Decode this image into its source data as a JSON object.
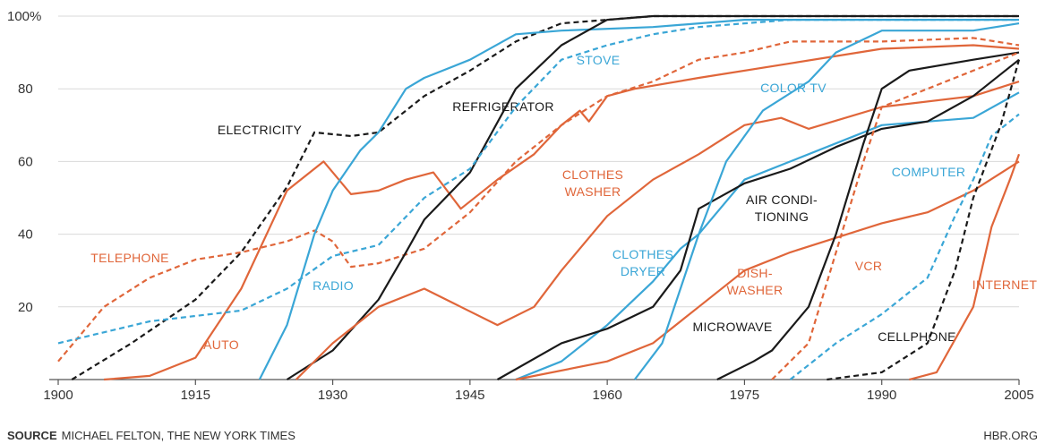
{
  "chart_data": {
    "type": "line",
    "source_label": "SOURCE",
    "source": "MICHAEL FELTON, THE NEW YORK TIMES",
    "credit": "HBR.ORG",
    "xlim": [
      1900,
      2005
    ],
    "xticks": [
      1900,
      1915,
      1930,
      1945,
      1960,
      1975,
      1990,
      2005
    ],
    "ylim": [
      0,
      100
    ],
    "yticks": [
      {
        "value": 100,
        "label": "100%"
      },
      80,
      60,
      40,
      20
    ],
    "grid": true,
    "series": [
      {
        "name": "ELECTRICITY",
        "color": "#1a1a1a",
        "dashed": true,
        "x": [
          1901.5,
          1908,
          1915,
          1920,
          1925,
          1928,
          1932,
          1935,
          1940,
          1945,
          1950,
          1955,
          1960,
          1965,
          2005
        ],
        "values": [
          0,
          10,
          22,
          35,
          53,
          68,
          67,
          68,
          78,
          85,
          93,
          98,
          99,
          100,
          100
        ]
      },
      {
        "name": "TELEPHONE",
        "color": "#e0663a",
        "dashed": true,
        "x": [
          1900,
          1905,
          1910,
          1915,
          1920,
          1925,
          1928,
          1930,
          1932,
          1935,
          1940,
          1945,
          1950,
          1955,
          1960,
          1965,
          1970,
          1975,
          1980,
          1990,
          2000,
          2005
        ],
        "values": [
          5,
          20,
          28,
          33,
          35,
          38,
          41,
          38,
          31,
          32,
          36,
          46,
          60,
          70,
          78,
          82,
          88,
          90,
          93,
          93,
          94,
          92
        ]
      },
      {
        "name": "AUTO",
        "color": "#e0663a",
        "dashed": false,
        "x": [
          1905,
          1910,
          1915,
          1920,
          1925,
          1929,
          1932,
          1935,
          1938,
          1941,
          1944,
          1948,
          1952,
          1955,
          1957,
          1958,
          1960,
          1963,
          1970,
          1980,
          1990,
          2000,
          2005
        ],
        "values": [
          0,
          1,
          6,
          25,
          52,
          60,
          51,
          52,
          55,
          57,
          47,
          55,
          62,
          70,
          74,
          71,
          78,
          80,
          83,
          87,
          91,
          92,
          91
        ]
      },
      {
        "name": "RADIO",
        "color": "#3aa6d6",
        "dashed": false,
        "x": [
          1922,
          1925,
          1928,
          1930,
          1933,
          1935,
          1938,
          1940,
          1945,
          1950,
          1955,
          1965,
          1975,
          2005
        ],
        "values": [
          0,
          15,
          40,
          52,
          63,
          68,
          80,
          83,
          88,
          95,
          96,
          97,
          99,
          99
        ]
      },
      {
        "name": "REFRIGERATOR",
        "color": "#1a1a1a",
        "dashed": false,
        "x": [
          1925,
          1930,
          1935,
          1938,
          1940,
          1945,
          1950,
          1955,
          1960,
          1965,
          2005
        ],
        "values": [
          0,
          8,
          22,
          35,
          44,
          57,
          80,
          92,
          99,
          100,
          100
        ]
      },
      {
        "name": "STOVE",
        "color": "#3aa6d6",
        "dashed": true,
        "x": [
          1900,
          1910,
          1920,
          1925,
          1930,
          1935,
          1940,
          1945,
          1950,
          1955,
          1960,
          1965,
          1970,
          1980,
          2005
        ],
        "values": [
          10,
          16,
          19,
          25,
          34,
          37,
          50,
          58,
          75,
          88,
          92,
          95,
          97,
          99,
          99
        ]
      },
      {
        "name": [
          "CLOTHES",
          "WASHER"
        ],
        "color": "#e0663a",
        "dashed": false,
        "x": [
          1926,
          1930,
          1935,
          1940,
          1944,
          1948,
          1952,
          1955,
          1960,
          1965,
          1970,
          1975,
          1979,
          1982,
          1990,
          2000,
          2005
        ],
        "values": [
          0,
          10,
          20,
          25,
          20,
          15,
          20,
          30,
          45,
          55,
          62,
          70,
          72,
          69,
          75,
          78,
          82
        ]
      },
      {
        "name": [
          "CLOTHES",
          "DRYER"
        ],
        "color": "#3aa6d6",
        "dashed": false,
        "x": [
          1950,
          1955,
          1960,
          1965,
          1968,
          1970,
          1975,
          1980,
          1990,
          2000,
          2005
        ],
        "values": [
          0,
          5,
          15,
          27,
          36,
          40,
          55,
          60,
          70,
          72,
          79
        ]
      },
      {
        "name": [
          "DISH-",
          "WASHER"
        ],
        "color": "#e0663a",
        "dashed": false,
        "x": [
          1950,
          1960,
          1965,
          1970,
          1975,
          1980,
          1990,
          1995,
          2000,
          2005
        ],
        "values": [
          0,
          5,
          10,
          20,
          30,
          35,
          43,
          46,
          52,
          60
        ]
      },
      {
        "name": [
          "AIR CONDI-",
          "TIONING"
        ],
        "color": "#1a1a1a",
        "dashed": false,
        "x": [
          1948,
          1955,
          1960,
          1965,
          1968,
          1970,
          1975,
          1980,
          1985,
          1990,
          1995,
          2000,
          2005
        ],
        "values": [
          0,
          10,
          14,
          20,
          30,
          47,
          54,
          58,
          64,
          69,
          71,
          78,
          88
        ]
      },
      {
        "name": "COLOR TV",
        "color": "#3aa6d6",
        "dashed": false,
        "x": [
          1963,
          1966,
          1970,
          1973,
          1977,
          1982,
          1985,
          1990,
          2000,
          2005
        ],
        "values": [
          0,
          10,
          40,
          60,
          74,
          82,
          90,
          96,
          96,
          98
        ]
      },
      {
        "name": "MICROWAVE",
        "color": "#1a1a1a",
        "dashed": false,
        "x": [
          1972,
          1976,
          1978,
          1982,
          1985,
          1988,
          1990,
          1993,
          2000,
          2005
        ],
        "values": [
          0,
          5,
          8,
          20,
          40,
          65,
          80,
          85,
          88,
          90
        ]
      },
      {
        "name": "VCR",
        "color": "#e0663a",
        "dashed": true,
        "x": [
          1978,
          1982,
          1985,
          1988,
          1990,
          1995,
          2000,
          2005
        ],
        "values": [
          0,
          10,
          35,
          60,
          75,
          80,
          85,
          90
        ]
      },
      {
        "name": "COMPUTER",
        "color": "#3aa6d6",
        "dashed": true,
        "x": [
          1980,
          1985,
          1990,
          1995,
          1998,
          2000,
          2002,
          2005
        ],
        "values": [
          0,
          10,
          18,
          28,
          45,
          55,
          67,
          73
        ]
      },
      {
        "name": "CELLPHONE",
        "color": "#1a1a1a",
        "dashed": true,
        "x": [
          1984,
          1990,
          1995,
          1998,
          2000,
          2003,
          2005
        ],
        "values": [
          0,
          2,
          10,
          30,
          50,
          70,
          88
        ]
      },
      {
        "name": "INTERNET",
        "color": "#e0663a",
        "dashed": false,
        "x": [
          1993,
          1996,
          2000,
          2002,
          2004,
          2005
        ],
        "values": [
          0,
          2,
          20,
          42,
          55,
          62
        ]
      }
    ]
  }
}
